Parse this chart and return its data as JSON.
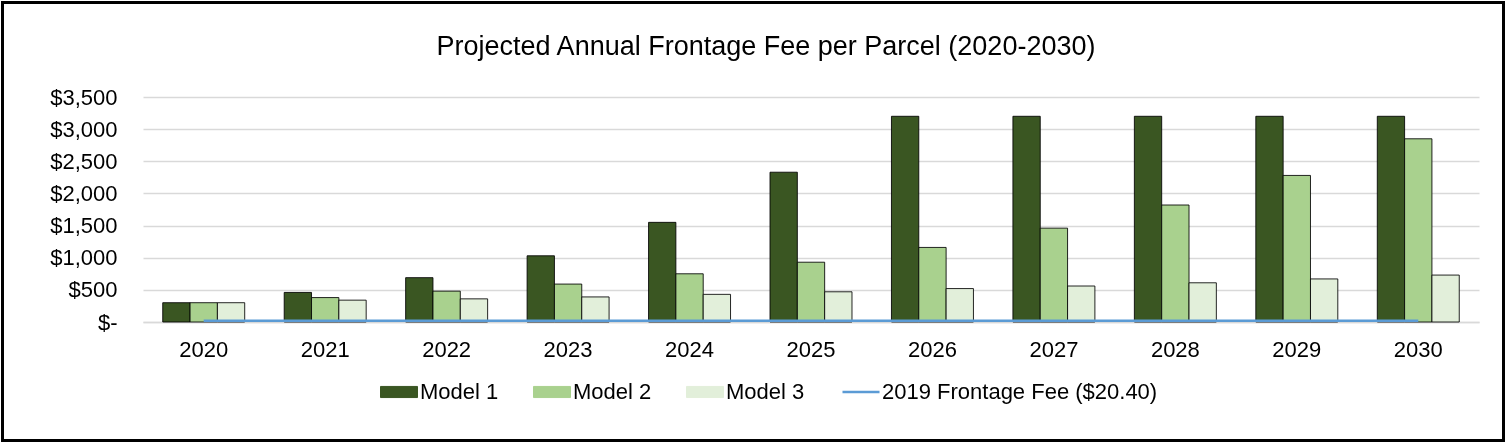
{
  "chart_data": {
    "type": "bar",
    "title": "Projected Annual Frontage Fee per Parcel (2020-2030)",
    "categories": [
      "2020",
      "2021",
      "2022",
      "2023",
      "2024",
      "2025",
      "2026",
      "2027",
      "2028",
      "2029",
      "2030"
    ],
    "series": [
      {
        "name": "Model 1",
        "color": "#3a5622",
        "values": [
          300,
          460,
          690,
          1030,
          1550,
          2330,
          3200,
          3200,
          3200,
          3200,
          3200
        ]
      },
      {
        "name": "Model 2",
        "color": "#a9d18e",
        "values": [
          300,
          380,
          480,
          590,
          750,
          930,
          1160,
          1460,
          1820,
          2280,
          2850
        ]
      },
      {
        "name": "Model 3",
        "color": "#e2efda",
        "values": [
          300,
          340,
          360,
          390,
          430,
          470,
          520,
          560,
          610,
          670,
          730
        ]
      },
      {
        "name": "2019 Frontage Fee ($20.40)",
        "type": "line",
        "color": "#5b9bd5",
        "values": [
          20.4,
          20.4,
          20.4,
          20.4,
          20.4,
          20.4,
          20.4,
          20.4,
          20.4,
          20.4,
          20.4
        ]
      }
    ],
    "ylim": [
      0,
      3500
    ],
    "yticks": [
      {
        "value": 0,
        "label": "$-"
      },
      {
        "value": 500,
        "label": "$500"
      },
      {
        "value": 1000,
        "label": "$1,000"
      },
      {
        "value": 1500,
        "label": "$1,500"
      },
      {
        "value": 2000,
        "label": "$2,000"
      },
      {
        "value": 2500,
        "label": "$2,500"
      },
      {
        "value": 3000,
        "label": "$3,000"
      },
      {
        "value": 3500,
        "label": "$3,500"
      }
    ],
    "grid": "y",
    "legend": "bottom"
  }
}
